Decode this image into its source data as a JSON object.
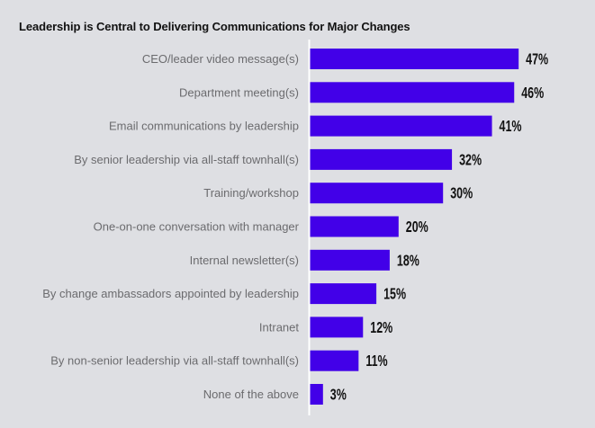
{
  "chart_data": {
    "type": "bar",
    "orientation": "horizontal",
    "title": "Leadership is Central to Delivering Communications for Major Changes",
    "xlabel": "",
    "ylabel": "",
    "categories": [
      "CEO/leader video message(s)",
      "Department meeting(s)",
      "Email communications by leadership",
      "By senior leadership via all-staff townhall(s)",
      "Training/workshop",
      "One-on-one conversation with manager",
      "Internal newsletter(s)",
      "By change ambassadors appointed by leadership",
      "Intranet",
      "By non-senior leadership via all-staff townhall(s)",
      "None of the above"
    ],
    "values": [
      47,
      46,
      41,
      32,
      30,
      20,
      18,
      15,
      12,
      11,
      3
    ],
    "value_labels": [
      "47%",
      "46%",
      "41%",
      "32%",
      "30%",
      "20%",
      "18%",
      "15%",
      "12%",
      "11%",
      "3%"
    ],
    "unit": "%",
    "xlim": [
      0,
      60
    ],
    "grid": false,
    "legend": "none",
    "colors": {
      "bar": "#4200e8",
      "background": "#dedfe3",
      "axis": "#ffffff",
      "category_text": "#6b6b6e",
      "value_text": "#111111"
    }
  }
}
